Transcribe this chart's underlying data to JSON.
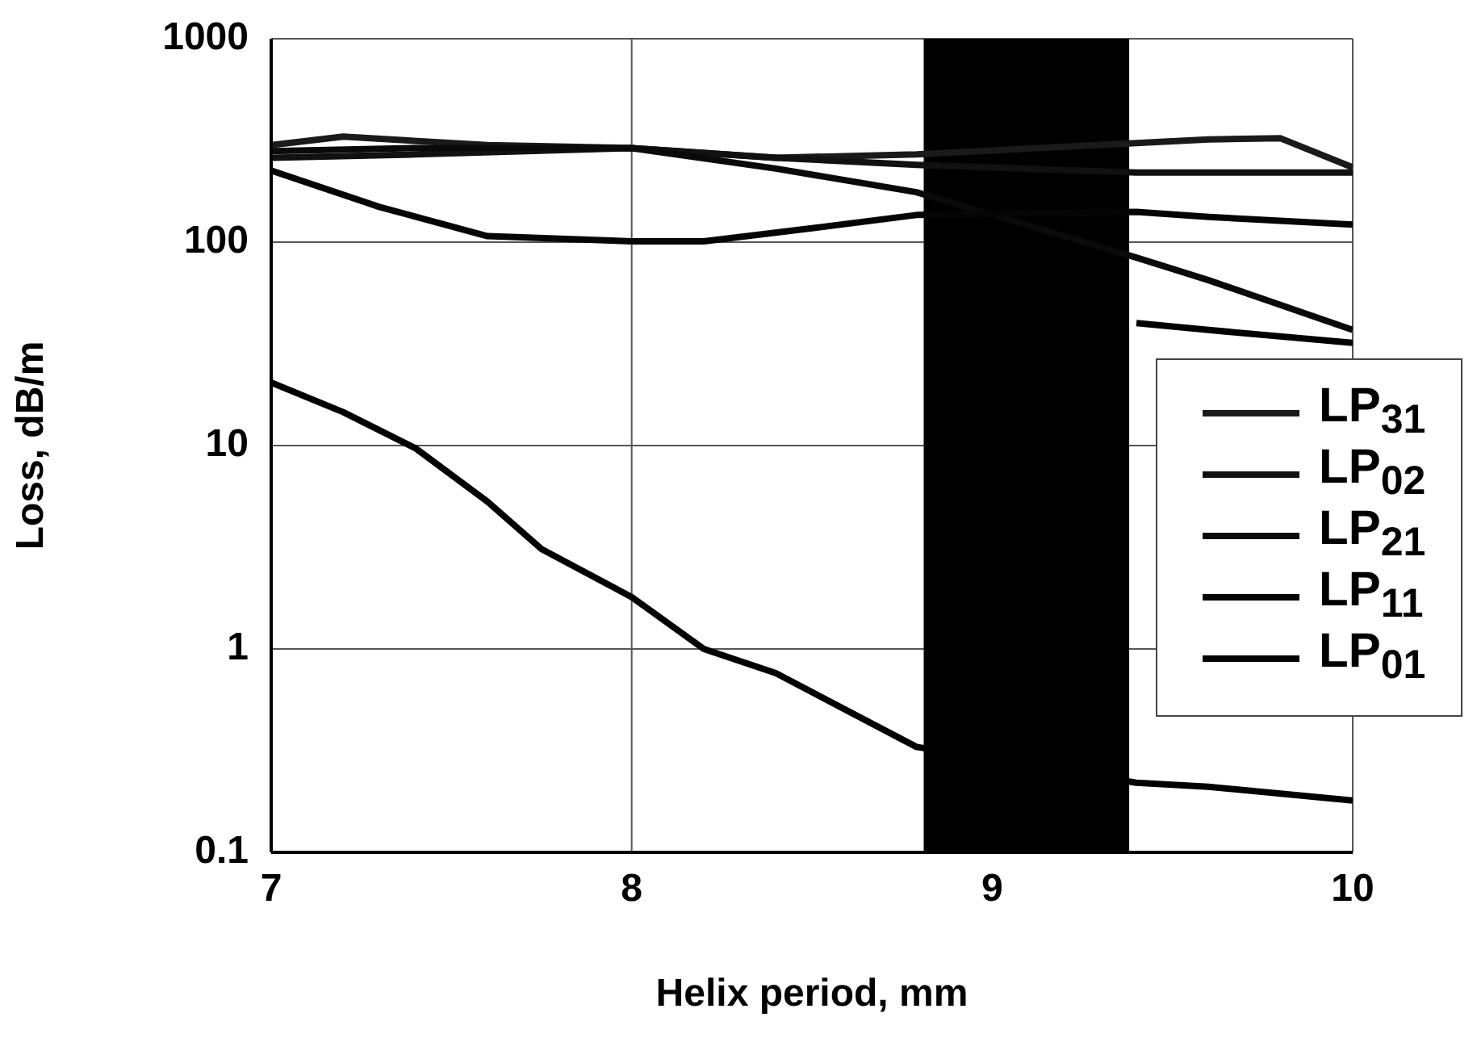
{
  "chart_data": {
    "type": "line",
    "xlabel": "Helix period, mm",
    "ylabel": "Loss, dB/m",
    "xlim": [
      7,
      10
    ],
    "xticks": [
      7,
      8,
      9,
      10
    ],
    "ylim": [
      0.1,
      1000
    ],
    "yticks": [
      0.1,
      1,
      10,
      100,
      1000
    ],
    "log": "y",
    "grid": true,
    "legend": "right",
    "marker": "none",
    "line_style": "solid",
    "series": [
      {
        "name": "LP$_{31}$",
        "color": "#1a1a1a",
        "x": [
          7,
          7.2,
          7.6,
          8.0,
          8.4,
          8.79,
          9.4,
          9.6,
          9.8,
          10
        ],
        "values": [
          300,
          330,
          300,
          290,
          260,
          270,
          307,
          320,
          324,
          233
        ]
      },
      {
        "name": "LP$_{02}$",
        "color": "#111111",
        "x": [
          7,
          7.4,
          8.0,
          8.4,
          8.79,
          9.4,
          10
        ],
        "values": [
          260,
          270,
          290,
          260,
          240,
          220,
          220
        ]
      },
      {
        "name": "LP$_{21}$",
        "color": "#0a0a0a",
        "x": [
          7,
          7.4,
          8.0,
          8.4,
          8.79,
          9.4,
          9.6,
          10
        ],
        "values": [
          280,
          290,
          290,
          230,
          176,
          84,
          65,
          37
        ]
      },
      {
        "name": "LP$_{11}$",
        "color": "#050505",
        "x": [
          7,
          7.3,
          7.6,
          8.0,
          8.2,
          8.5,
          8.79,
          9.4,
          9.6,
          10
        ],
        "values": [
          225,
          149,
          107,
          101,
          101,
          117,
          136,
          141,
          133,
          122
        ]
      },
      {
        "name": "LP$_{01}$",
        "color": "#000000",
        "x": [
          7,
          7.2,
          7.4,
          7.6,
          7.75,
          8.0,
          8.2,
          8.4,
          8.79,
          9.4,
          9.6,
          10
        ],
        "values": [
          20.4,
          14.6,
          9.7,
          5.3,
          3.1,
          1.8,
          1.0,
          0.76,
          0.33,
          0.22,
          0.21,
          0.18
        ]
      },
      {
        "color": "#000000",
        "x": [
          9.4,
          9.6,
          10
        ],
        "values": [
          40,
          37,
          32
        ]
      }
    ],
    "bands": [
      {
        "axis": "x",
        "from": 8.81,
        "to": 9.38,
        "color": "#000000"
      }
    ]
  }
}
